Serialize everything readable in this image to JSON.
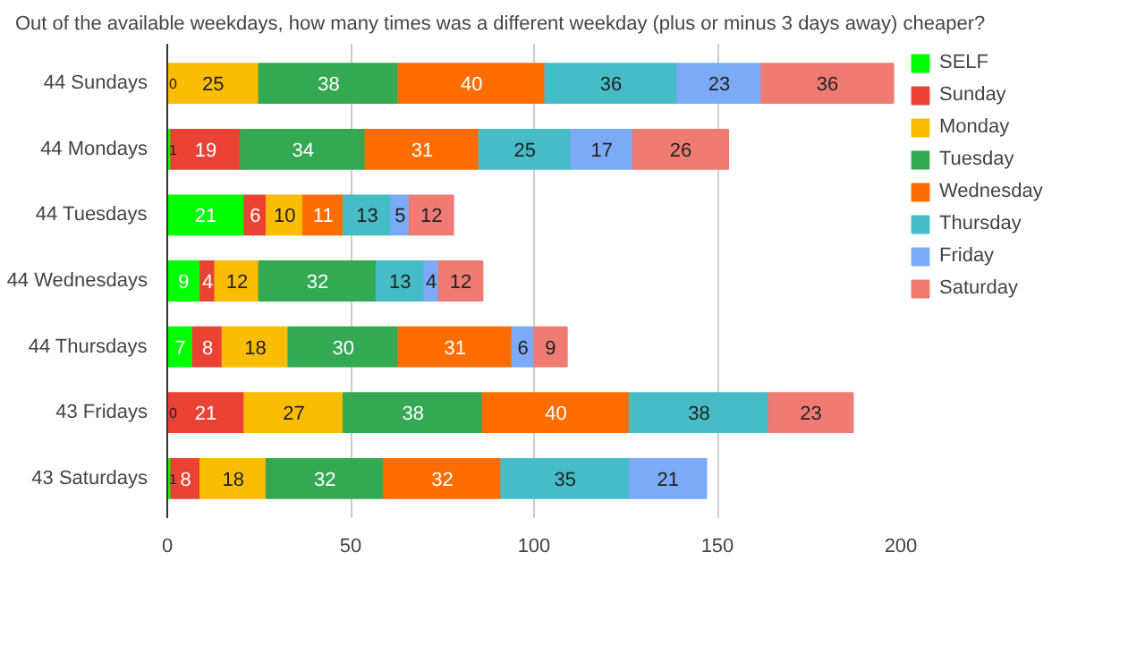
{
  "chart_data": {
    "type": "bar",
    "orientation": "horizontal",
    "stacked": true,
    "data_labels": true,
    "grid": "x",
    "legend": "right",
    "title": "Out of the available weekdays, how many times was a different weekday (plus or minus 3 days away) cheaper?",
    "categories": [
      "44 Sundays",
      "44 Mondays",
      "44 Tuesdays",
      "44 Wednesdays",
      "44 Thursdays",
      "43 Fridays",
      "43 Saturdays"
    ],
    "xlim": [
      0,
      200
    ],
    "xticks": [
      0,
      50,
      100,
      150,
      200
    ],
    "series": [
      {
        "name": "SELF",
        "color": "#00ff00",
        "values": [
          0,
          1,
          21,
          9,
          7,
          0,
          1
        ]
      },
      {
        "name": "Sunday",
        "color": "#ea4335",
        "values": [
          null,
          19,
          6,
          4,
          8,
          21,
          8
        ]
      },
      {
        "name": "Monday",
        "color": "#fbbc04",
        "values": [
          25,
          null,
          10,
          12,
          18,
          27,
          18
        ]
      },
      {
        "name": "Tuesday",
        "color": "#34a853",
        "values": [
          38,
          34,
          null,
          32,
          30,
          38,
          32
        ]
      },
      {
        "name": "Wednesday",
        "color": "#ff6d01",
        "values": [
          40,
          31,
          11,
          null,
          31,
          40,
          32
        ]
      },
      {
        "name": "Thursday",
        "color": "#46bdc6",
        "values": [
          36,
          25,
          13,
          13,
          null,
          38,
          35
        ]
      },
      {
        "name": "Friday",
        "color": "#7baaf7",
        "values": [
          23,
          17,
          5,
          4,
          6,
          null,
          21
        ]
      },
      {
        "name": "Saturday",
        "color": "#f07b72",
        "values": [
          36,
          26,
          12,
          12,
          9,
          23,
          null
        ]
      }
    ]
  }
}
